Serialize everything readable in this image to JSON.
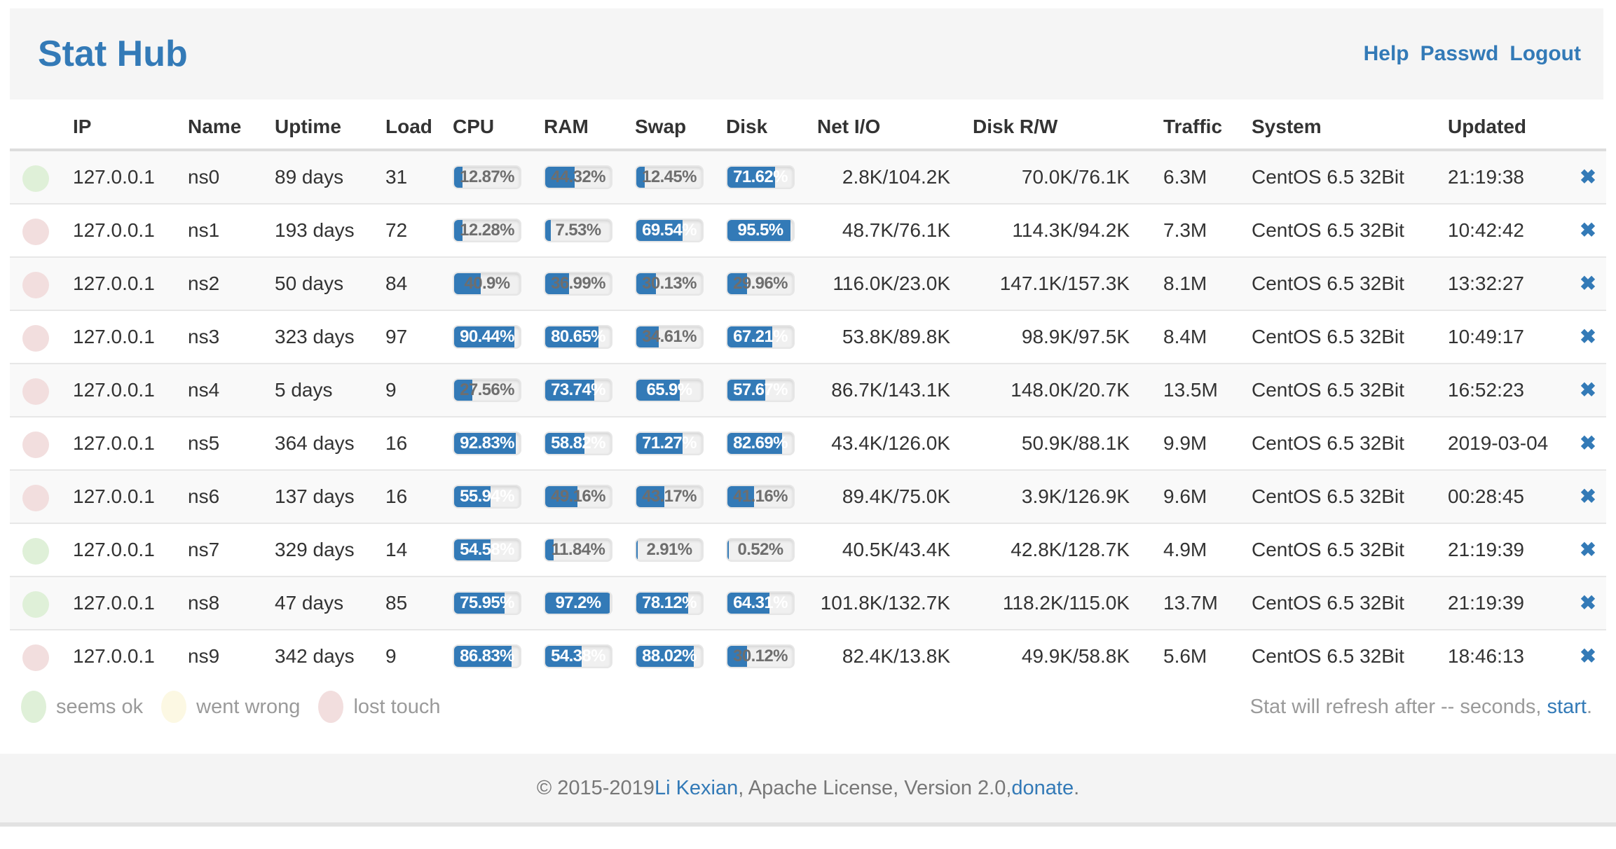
{
  "header": {
    "title": "Stat Hub",
    "links": [
      {
        "label": "Help"
      },
      {
        "label": "Passwd"
      },
      {
        "label": "Logout"
      }
    ]
  },
  "table": {
    "columns": [
      "",
      "IP",
      "Name",
      "Uptime",
      "Load",
      "CPU",
      "RAM",
      "Swap",
      "Disk",
      "Net I/O",
      "Disk R/W",
      "Traffic",
      "System",
      "Updated",
      ""
    ],
    "rows": [
      {
        "status": "ok",
        "ip": "127.0.0.1",
        "name": "ns0",
        "uptime": "89 days",
        "load": "31",
        "cpu": {
          "value": 12.87,
          "label": "12.87%"
        },
        "ram": {
          "value": 44.32,
          "label": "44.32%"
        },
        "swap": {
          "value": 12.45,
          "label": "12.45%"
        },
        "disk": {
          "value": 71.62,
          "label": "71.62%"
        },
        "net_io": "2.8K/104.2K",
        "disk_rw": "70.0K/76.1K",
        "traffic": "6.3M",
        "system": "CentOS 6.5 32Bit",
        "updated": "21:19:38"
      },
      {
        "status": "lost",
        "ip": "127.0.0.1",
        "name": "ns1",
        "uptime": "193 days",
        "load": "72",
        "cpu": {
          "value": 12.28,
          "label": "12.28%"
        },
        "ram": {
          "value": 7.53,
          "label": "7.53%"
        },
        "swap": {
          "value": 69.54,
          "label": "69.54%"
        },
        "disk": {
          "value": 95.5,
          "label": "95.5%"
        },
        "net_io": "48.7K/76.1K",
        "disk_rw": "114.3K/94.2K",
        "traffic": "7.3M",
        "system": "CentOS 6.5 32Bit",
        "updated": "10:42:42"
      },
      {
        "status": "lost",
        "ip": "127.0.0.1",
        "name": "ns2",
        "uptime": "50 days",
        "load": "84",
        "cpu": {
          "value": 40.9,
          "label": "40.9%"
        },
        "ram": {
          "value": 36.99,
          "label": "36.99%"
        },
        "swap": {
          "value": 30.13,
          "label": "30.13%"
        },
        "disk": {
          "value": 29.96,
          "label": "29.96%"
        },
        "net_io": "116.0K/23.0K",
        "disk_rw": "147.1K/157.3K",
        "traffic": "8.1M",
        "system": "CentOS 6.5 32Bit",
        "updated": "13:32:27"
      },
      {
        "status": "lost",
        "ip": "127.0.0.1",
        "name": "ns3",
        "uptime": "323 days",
        "load": "97",
        "cpu": {
          "value": 90.44,
          "label": "90.44%"
        },
        "ram": {
          "value": 80.65,
          "label": "80.65%"
        },
        "swap": {
          "value": 34.61,
          "label": "34.61%"
        },
        "disk": {
          "value": 67.21,
          "label": "67.21%"
        },
        "net_io": "53.8K/89.8K",
        "disk_rw": "98.9K/97.5K",
        "traffic": "8.4M",
        "system": "CentOS 6.5 32Bit",
        "updated": "10:49:17"
      },
      {
        "status": "lost",
        "ip": "127.0.0.1",
        "name": "ns4",
        "uptime": "5 days",
        "load": "9",
        "cpu": {
          "value": 27.56,
          "label": "27.56%"
        },
        "ram": {
          "value": 73.74,
          "label": "73.74%"
        },
        "swap": {
          "value": 65.9,
          "label": "65.9%"
        },
        "disk": {
          "value": 57.67,
          "label": "57.67%"
        },
        "net_io": "86.7K/143.1K",
        "disk_rw": "148.0K/20.7K",
        "traffic": "13.5M",
        "system": "CentOS 6.5 32Bit",
        "updated": "16:52:23"
      },
      {
        "status": "lost",
        "ip": "127.0.0.1",
        "name": "ns5",
        "uptime": "364 days",
        "load": "16",
        "cpu": {
          "value": 92.83,
          "label": "92.83%"
        },
        "ram": {
          "value": 58.82,
          "label": "58.82%"
        },
        "swap": {
          "value": 71.27,
          "label": "71.27%"
        },
        "disk": {
          "value": 82.69,
          "label": "82.69%"
        },
        "net_io": "43.4K/126.0K",
        "disk_rw": "50.9K/88.1K",
        "traffic": "9.9M",
        "system": "CentOS 6.5 32Bit",
        "updated": "2019-03-04"
      },
      {
        "status": "lost",
        "ip": "127.0.0.1",
        "name": "ns6",
        "uptime": "137 days",
        "load": "16",
        "cpu": {
          "value": 55.94,
          "label": "55.94%"
        },
        "ram": {
          "value": 49.16,
          "label": "49.16%"
        },
        "swap": {
          "value": 43.17,
          "label": "43.17%"
        },
        "disk": {
          "value": 41.16,
          "label": "41.16%"
        },
        "net_io": "89.4K/75.0K",
        "disk_rw": "3.9K/126.9K",
        "traffic": "9.6M",
        "system": "CentOS 6.5 32Bit",
        "updated": "00:28:45"
      },
      {
        "status": "ok",
        "ip": "127.0.0.1",
        "name": "ns7",
        "uptime": "329 days",
        "load": "14",
        "cpu": {
          "value": 54.58,
          "label": "54.58%"
        },
        "ram": {
          "value": 11.84,
          "label": "11.84%"
        },
        "swap": {
          "value": 2.91,
          "label": "2.91%"
        },
        "disk": {
          "value": 0.52,
          "label": "0.52%"
        },
        "net_io": "40.5K/43.4K",
        "disk_rw": "42.8K/128.7K",
        "traffic": "4.9M",
        "system": "CentOS 6.5 32Bit",
        "updated": "21:19:39"
      },
      {
        "status": "ok",
        "ip": "127.0.0.1",
        "name": "ns8",
        "uptime": "47 days",
        "load": "85",
        "cpu": {
          "value": 75.95,
          "label": "75.95%"
        },
        "ram": {
          "value": 97.2,
          "label": "97.2%"
        },
        "swap": {
          "value": 78.12,
          "label": "78.12%"
        },
        "disk": {
          "value": 64.31,
          "label": "64.31%"
        },
        "net_io": "101.8K/132.7K",
        "disk_rw": "118.2K/115.0K",
        "traffic": "13.7M",
        "system": "CentOS 6.5 32Bit",
        "updated": "21:19:39"
      },
      {
        "status": "lost",
        "ip": "127.0.0.1",
        "name": "ns9",
        "uptime": "342 days",
        "load": "9",
        "cpu": {
          "value": 86.83,
          "label": "86.83%"
        },
        "ram": {
          "value": 54.38,
          "label": "54.38%"
        },
        "swap": {
          "value": 88.02,
          "label": "88.02%"
        },
        "disk": {
          "value": 30.12,
          "label": "30.12%"
        },
        "net_io": "82.4K/13.8K",
        "disk_rw": "49.9K/58.8K",
        "traffic": "5.6M",
        "system": "CentOS 6.5 32Bit",
        "updated": "18:46:13"
      }
    ]
  },
  "legend": [
    {
      "status": "ok",
      "label": "seems ok"
    },
    {
      "status": "warn",
      "label": "went wrong"
    },
    {
      "status": "lost",
      "label": "lost touch"
    }
  ],
  "refresh": {
    "prefix": "Stat will refresh after -- seconds, ",
    "link": "start",
    "suffix": "."
  },
  "footer": {
    "copy_prefix": "© 2015-2019 ",
    "author_link": "Li Kexian",
    "middle": ", Apache License, Version 2.0, ",
    "donate_link": "donate",
    "suffix": "."
  },
  "icons": {
    "close": "✖"
  },
  "colors": {
    "accent": "#337ab7",
    "bar_fill": "#337ab7",
    "status": {
      "ok": "#dff0d8",
      "warn": "#fcf8e3",
      "lost": "#f2dede"
    }
  }
}
